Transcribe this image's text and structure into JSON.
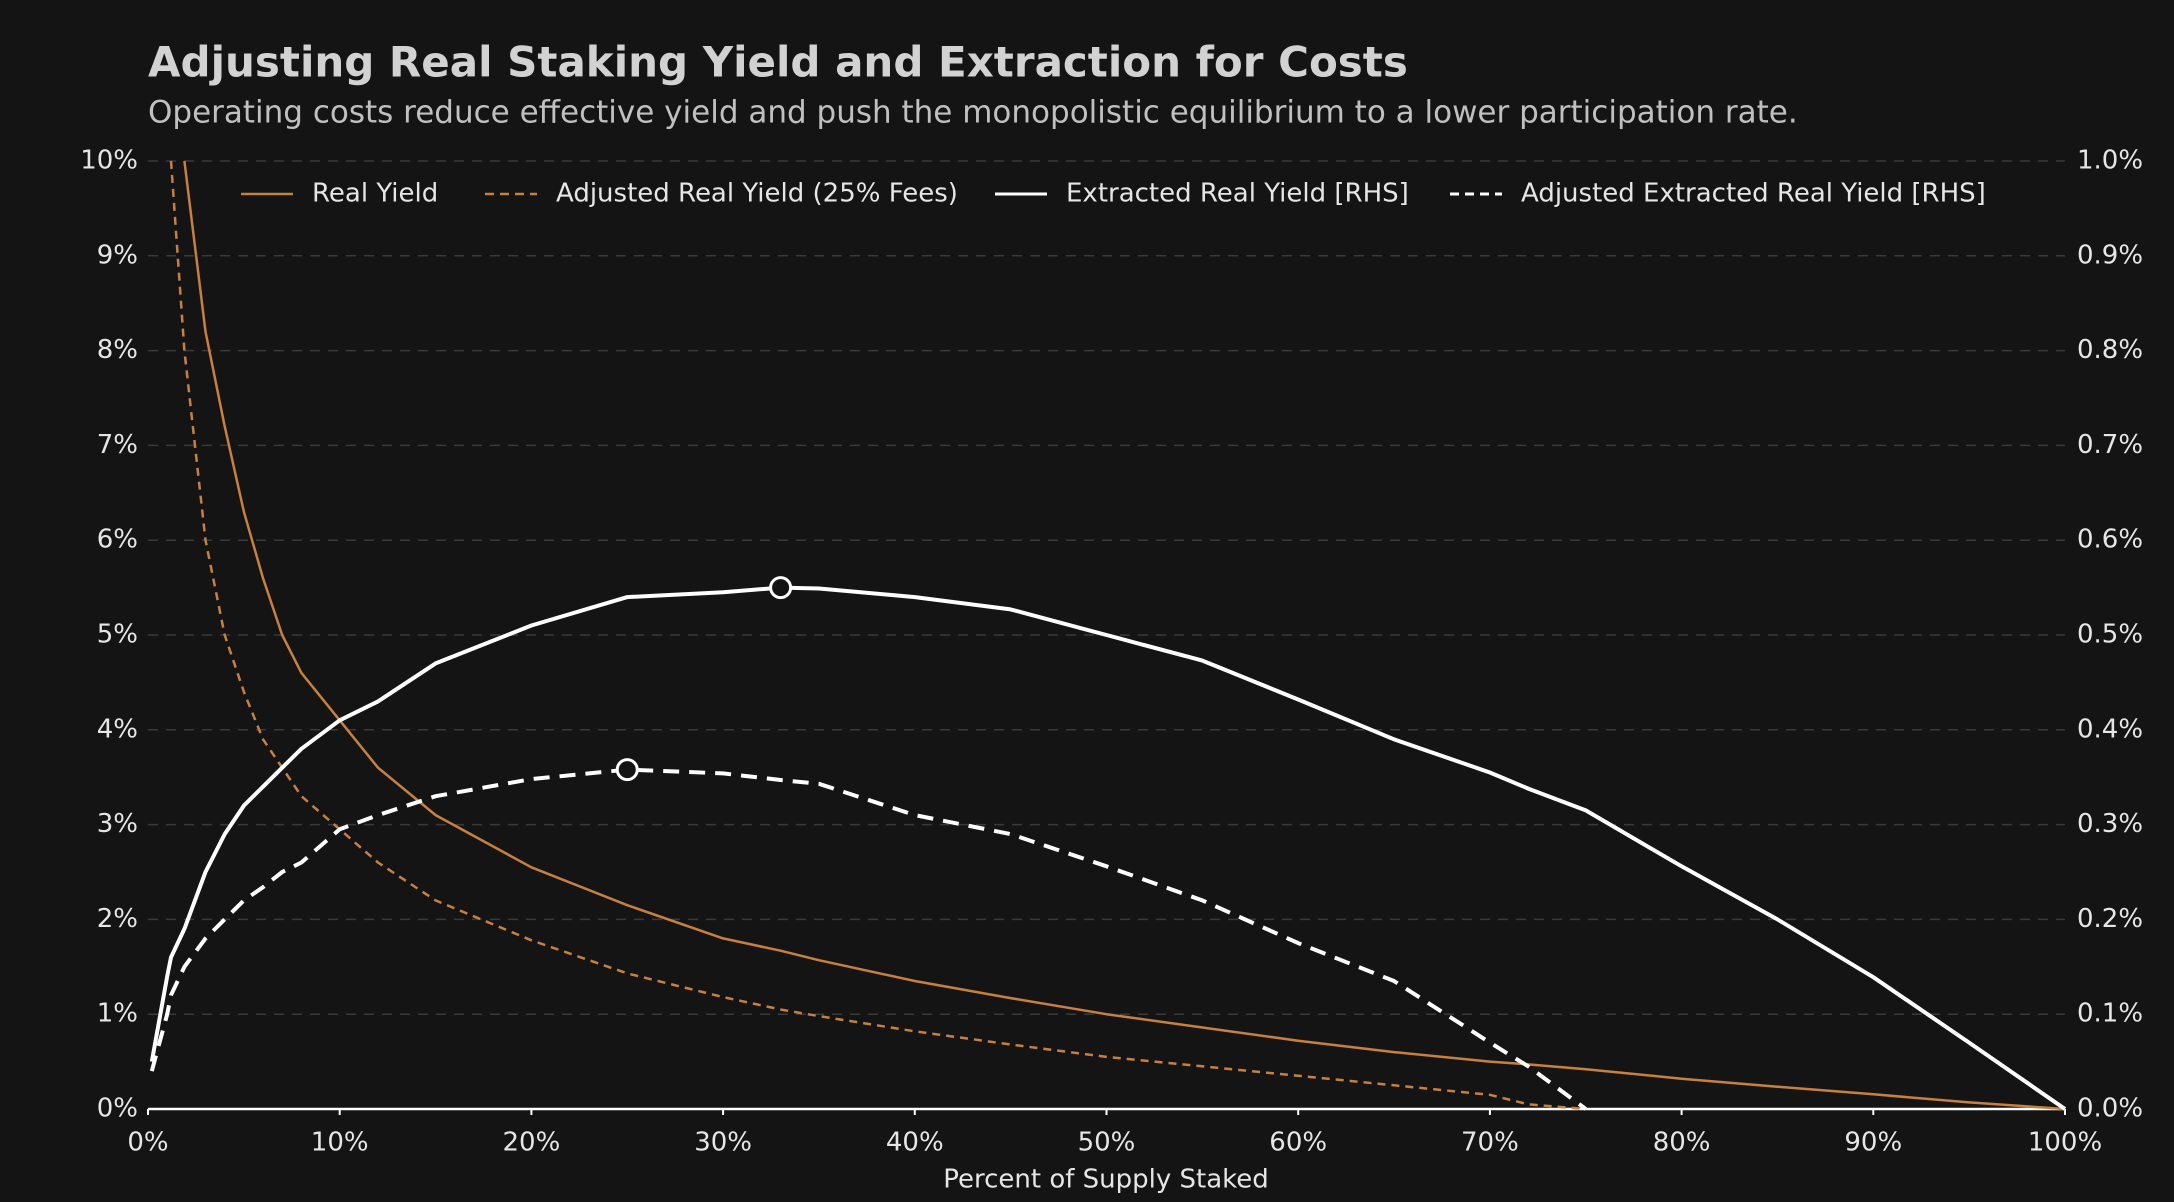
{
  "chart_data": {
    "type": "line",
    "title": "Adjusting Real Staking Yield and Extraction for Costs",
    "subtitle": "Operating costs reduce effective yield and push the monopolistic equilibrium to a lower participation rate.",
    "x_label": "Percent of Supply Staked",
    "x": [
      0.2,
      1,
      1.2,
      1.9,
      3,
      4,
      5,
      6,
      7,
      8,
      10,
      12,
      15,
      20,
      25,
      30,
      33,
      35,
      40,
      45,
      50,
      55,
      60,
      65,
      70,
      72,
      75,
      80,
      85,
      90,
      95,
      100
    ],
    "xlim": [
      0,
      100
    ],
    "xticks": [
      {
        "value": 0,
        "label": "0%"
      },
      {
        "value": 10,
        "label": "10%"
      },
      {
        "value": 20,
        "label": "20%"
      },
      {
        "value": 30,
        "label": "30%"
      },
      {
        "value": 40,
        "label": "40%"
      },
      {
        "value": 50,
        "label": "50%"
      },
      {
        "value": 60,
        "label": "60%"
      },
      {
        "value": 70,
        "label": "70%"
      },
      {
        "value": 80,
        "label": "80%"
      },
      {
        "value": 90,
        "label": "90%"
      },
      {
        "value": 100,
        "label": "100%"
      }
    ],
    "ylim": [
      0,
      10
    ],
    "yticks": [
      {
        "value": 0,
        "label": "0%"
      },
      {
        "value": 1,
        "label": "1%"
      },
      {
        "value": 2,
        "label": "2%"
      },
      {
        "value": 3,
        "label": "3%"
      },
      {
        "value": 4,
        "label": "4%"
      },
      {
        "value": 5,
        "label": "5%"
      },
      {
        "value": 6,
        "label": "6%"
      },
      {
        "value": 7,
        "label": "7%"
      },
      {
        "value": 8,
        "label": "8%"
      },
      {
        "value": 9,
        "label": "9%"
      },
      {
        "value": 10,
        "label": "10%"
      }
    ],
    "y2lim": [
      0,
      1
    ],
    "y2ticks": [
      {
        "value": 0,
        "label": "0.0%"
      },
      {
        "value": 0.1,
        "label": "0.1%"
      },
      {
        "value": 0.2,
        "label": "0.2%"
      },
      {
        "value": 0.3,
        "label": "0.3%"
      },
      {
        "value": 0.4,
        "label": "0.4%"
      },
      {
        "value": 0.5,
        "label": "0.5%"
      },
      {
        "value": 0.6,
        "label": "0.6%"
      },
      {
        "value": 0.7,
        "label": "0.7%"
      },
      {
        "value": 0.8,
        "label": "0.8%"
      },
      {
        "value": 0.9,
        "label": "0.9%"
      },
      {
        "value": 1,
        "label": "1.0%"
      }
    ],
    "grid": true,
    "legend": "top",
    "series": [
      {
        "name": "Real Yield",
        "color": "#c8803f",
        "dashed": false,
        "values": [
          null,
          null,
          null,
          10,
          8.2,
          7.2,
          6.3,
          5.6,
          5.0,
          4.6,
          4.1,
          3.6,
          3.1,
          2.55,
          2.15,
          1.8,
          1.67,
          1.57,
          1.35,
          1.17,
          1.0,
          0.86,
          0.72,
          0.6,
          0.5,
          0.47,
          0.42,
          0.32,
          0.235,
          0.155,
          0.07,
          0
        ]
      },
      {
        "name": "Adjusted Real Yield (25% Fees)",
        "color": "#c8803f",
        "dashed": true,
        "values": [
          null,
          null,
          10,
          8.0,
          6.0,
          5.0,
          4.4,
          3.9,
          3.6,
          3.3,
          2.95,
          2.6,
          2.2,
          1.78,
          1.43,
          1.18,
          1.05,
          0.98,
          0.82,
          0.68,
          0.55,
          0.45,
          0.35,
          0.25,
          0.15,
          0.05,
          0,
          null,
          null,
          null,
          null,
          null
        ]
      },
      {
        "name": "Extracted Real Yield [RHS]",
        "color": "#ffffff",
        "dashed": false,
        "axis": "y2",
        "peak_marker": true,
        "values": [
          0.05,
          0.14,
          0.16,
          0.19,
          0.25,
          0.29,
          0.32,
          0.34,
          0.36,
          0.38,
          0.41,
          0.43,
          0.47,
          0.51,
          0.54,
          0.545,
          0.55,
          0.549,
          0.54,
          0.527,
          0.5,
          0.473,
          0.432,
          0.39,
          0.355,
          0.338,
          0.315,
          0.256,
          0.2,
          0.139,
          0.07,
          0
        ]
      },
      {
        "name": "Adjusted Extracted Real Yield [RHS]",
        "color": "#ffffff",
        "dashed": true,
        "axis": "y2",
        "peak_marker": true,
        "values": [
          0.04,
          0.1,
          0.12,
          0.15,
          0.18,
          0.2,
          0.22,
          0.234,
          0.25,
          0.26,
          0.295,
          0.31,
          0.33,
          0.348,
          0.358,
          0.354,
          0.347,
          0.343,
          0.31,
          0.29,
          0.256,
          0.22,
          0.175,
          0.135,
          0.07,
          0.045,
          0,
          null,
          null,
          null,
          null,
          null
        ]
      }
    ]
  }
}
